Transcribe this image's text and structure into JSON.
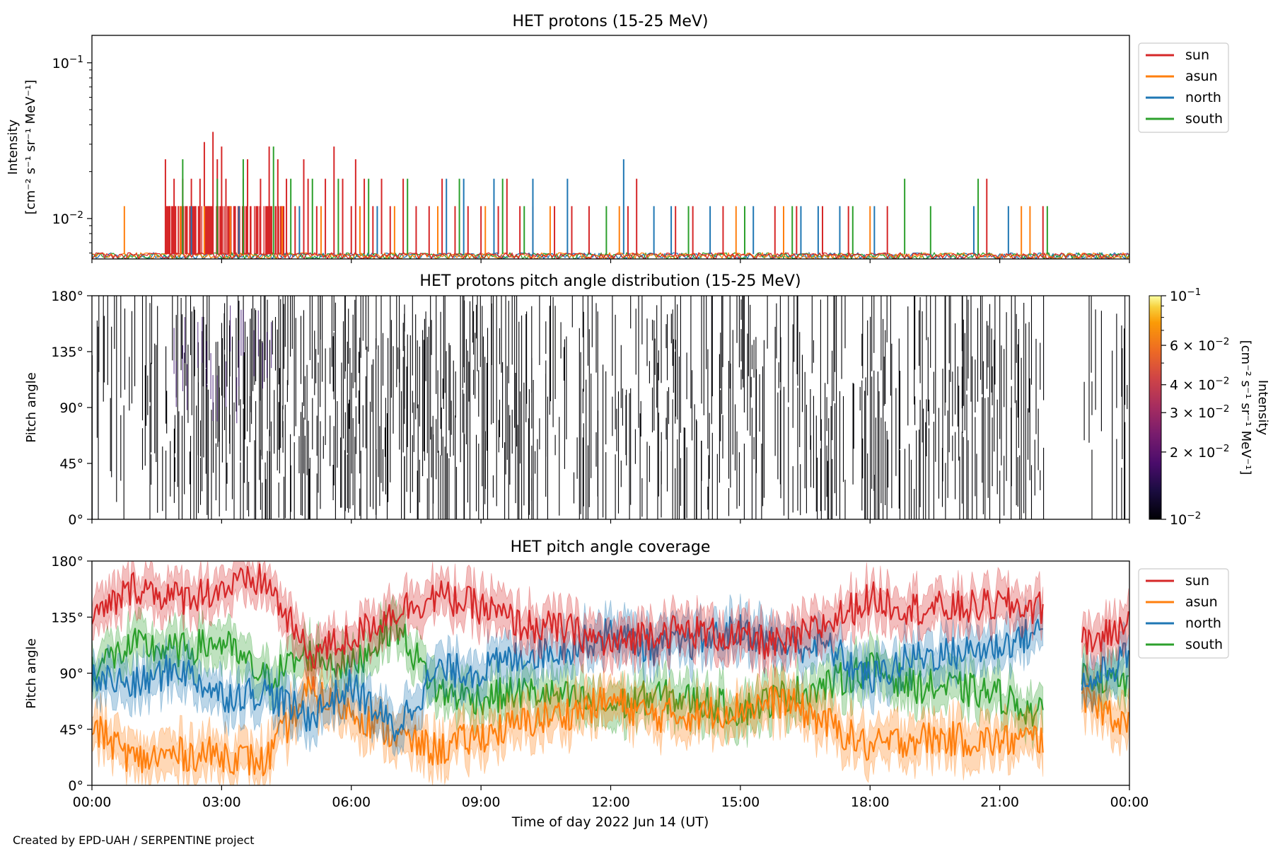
{
  "footer": "Created by EPD-UAH / SERPENTINE project",
  "colors": {
    "sun": "#d62728",
    "asun": "#ff7f0e",
    "north": "#1f77b4",
    "south": "#2ca02c"
  },
  "chart_data": [
    {
      "type": "line",
      "title": "HET protons (15-25 MeV)",
      "ylabel": [
        "Intensity",
        "[cm⁻² s⁻¹ sr⁻¹ MeV⁻¹]"
      ],
      "yscale": "log",
      "ylim": [
        0.0055,
        0.15
      ],
      "yticks": [
        {
          "value": 0.01,
          "base": "10",
          "exp": "−2"
        },
        {
          "value": 0.1,
          "base": "10",
          "exp": "−1"
        }
      ],
      "xlim_hours": [
        0,
        24
      ],
      "legend": {
        "placement": "outside right",
        "entries": [
          "sun",
          "asun",
          "north",
          "south"
        ]
      },
      "baseline_intensity": 0.0059,
      "series": [
        {
          "name": "sun",
          "color": "#d62728",
          "spikes": [
            [
              1.7,
              0.024
            ],
            [
              1.8,
              0.012
            ],
            [
              1.9,
              0.018
            ],
            [
              2.0,
              0.012
            ],
            [
              2.1,
              0.018
            ],
            [
              2.2,
              0.012
            ],
            [
              2.3,
              0.018
            ],
            [
              2.4,
              0.012
            ],
            [
              2.5,
              0.018
            ],
            [
              2.6,
              0.031
            ],
            [
              2.7,
              0.012
            ],
            [
              2.8,
              0.036
            ],
            [
              2.9,
              0.024
            ],
            [
              3.0,
              0.029
            ],
            [
              3.1,
              0.018
            ],
            [
              3.3,
              0.012
            ],
            [
              3.5,
              0.018
            ],
            [
              3.6,
              0.024
            ],
            [
              3.8,
              0.012
            ],
            [
              3.9,
              0.018
            ],
            [
              4.1,
              0.029
            ],
            [
              4.3,
              0.024
            ],
            [
              4.5,
              0.018
            ],
            [
              4.7,
              0.012
            ],
            [
              4.9,
              0.024
            ],
            [
              5.0,
              0.018
            ],
            [
              5.2,
              0.012
            ],
            [
              5.4,
              0.018
            ],
            [
              5.6,
              0.029
            ],
            [
              5.8,
              0.018
            ],
            [
              6.0,
              0.012
            ],
            [
              6.1,
              0.024
            ],
            [
              6.3,
              0.018
            ],
            [
              6.5,
              0.012
            ],
            [
              6.7,
              0.018
            ],
            [
              6.9,
              0.012
            ],
            [
              7.2,
              0.018
            ],
            [
              7.5,
              0.012
            ],
            [
              7.8,
              0.012
            ],
            [
              8.1,
              0.018
            ],
            [
              8.4,
              0.012
            ],
            [
              8.7,
              0.012
            ],
            [
              9.0,
              0.012
            ],
            [
              9.4,
              0.012
            ],
            [
              9.6,
              0.018
            ],
            [
              9.9,
              0.012
            ],
            [
              10.2,
              0.012
            ],
            [
              10.7,
              0.012
            ],
            [
              11.1,
              0.012
            ],
            [
              11.5,
              0.012
            ],
            [
              12.4,
              0.012
            ],
            [
              12.6,
              0.018
            ],
            [
              13.5,
              0.012
            ],
            [
              13.9,
              0.012
            ],
            [
              14.6,
              0.012
            ],
            [
              15.8,
              0.012
            ],
            [
              16.3,
              0.012
            ],
            [
              16.9,
              0.012
            ],
            [
              17.5,
              0.012
            ],
            [
              18.4,
              0.012
            ],
            [
              20.7,
              0.018
            ],
            [
              22.0,
              0.012
            ]
          ]
        },
        {
          "name": "asun",
          "color": "#ff7f0e",
          "spikes": [
            [
              0.75,
              0.012
            ],
            [
              2.05,
              0.012
            ],
            [
              2.6,
              0.012
            ],
            [
              3.2,
              0.012
            ],
            [
              4.4,
              0.012
            ],
            [
              5.3,
              0.012
            ],
            [
              6.2,
              0.012
            ],
            [
              7.0,
              0.012
            ],
            [
              8.0,
              0.012
            ],
            [
              9.1,
              0.012
            ],
            [
              10.6,
              0.012
            ],
            [
              12.2,
              0.012
            ],
            [
              14.9,
              0.012
            ],
            [
              16.0,
              0.012
            ],
            [
              18.0,
              0.012
            ],
            [
              21.5,
              0.012
            ],
            [
              21.7,
              0.012
            ]
          ]
        },
        {
          "name": "north",
          "color": "#1f77b4",
          "spikes": [
            [
              2.3,
              0.012
            ],
            [
              3.4,
              0.012
            ],
            [
              4.8,
              0.012
            ],
            [
              6.6,
              0.012
            ],
            [
              8.2,
              0.018
            ],
            [
              8.6,
              0.018
            ],
            [
              9.3,
              0.018
            ],
            [
              10.2,
              0.018
            ],
            [
              11.0,
              0.018
            ],
            [
              12.3,
              0.024
            ],
            [
              13.0,
              0.012
            ],
            [
              13.4,
              0.012
            ],
            [
              14.3,
              0.012
            ],
            [
              15.3,
              0.012
            ],
            [
              16.4,
              0.012
            ],
            [
              16.8,
              0.012
            ],
            [
              17.3,
              0.012
            ],
            [
              18.1,
              0.012
            ],
            [
              20.4,
              0.012
            ],
            [
              21.2,
              0.012
            ]
          ]
        },
        {
          "name": "south",
          "color": "#2ca02c",
          "spikes": [
            [
              2.1,
              0.024
            ],
            [
              2.9,
              0.018
            ],
            [
              3.5,
              0.024
            ],
            [
              4.2,
              0.029
            ],
            [
              4.6,
              0.018
            ],
            [
              5.1,
              0.018
            ],
            [
              5.7,
              0.018
            ],
            [
              6.4,
              0.018
            ],
            [
              7.3,
              0.018
            ],
            [
              8.5,
              0.018
            ],
            [
              9.5,
              0.018
            ],
            [
              10.0,
              0.012
            ],
            [
              11.9,
              0.012
            ],
            [
              13.8,
              0.012
            ],
            [
              15.1,
              0.012
            ],
            [
              16.2,
              0.012
            ],
            [
              17.6,
              0.012
            ],
            [
              18.8,
              0.018
            ],
            [
              19.4,
              0.012
            ],
            [
              20.5,
              0.018
            ],
            [
              22.1,
              0.012
            ]
          ]
        }
      ]
    },
    {
      "type": "heatmap",
      "title": "HET protons pitch angle distribution (15-25 MeV)",
      "ylabel": "Pitch angle",
      "ylim": [
        0,
        180
      ],
      "yticks": [
        "0°",
        "45°",
        "90°",
        "135°",
        "180°"
      ],
      "xlim_hours": [
        0,
        24
      ],
      "colorbar": {
        "label": [
          "Intensity",
          "[cm⁻² s⁻¹ sr⁻¹ MeV⁻¹]"
        ],
        "scale": "log",
        "range": [
          0.01,
          0.1
        ],
        "colormap": "inferno",
        "ticks": [
          {
            "value": 0.1,
            "base": "10",
            "exp": "−1"
          },
          {
            "value": 0.06,
            "base": "6 × 10",
            "exp": "−2"
          },
          {
            "value": 0.04,
            "base": "4 × 10",
            "exp": "−2"
          },
          {
            "value": 0.03,
            "base": "3 × 10",
            "exp": "−2"
          },
          {
            "value": 0.02,
            "base": "2 × 10",
            "exp": "−2"
          },
          {
            "value": 0.01,
            "base": "10",
            "exp": "−2"
          }
        ]
      },
      "data_gaps_hours": [
        [
          22.0,
          22.9
        ]
      ]
    },
    {
      "type": "line",
      "title": "HET pitch angle coverage",
      "ylabel": "Pitch angle",
      "xlabel": "Time of day 2022 Jun 14 (UT)",
      "ylim": [
        0,
        180
      ],
      "yticks": [
        "0°",
        "45°",
        "90°",
        "135°",
        "180°"
      ],
      "xticks": [
        "00:00",
        "03:00",
        "06:00",
        "09:00",
        "12:00",
        "15:00",
        "18:00",
        "21:00",
        "00:00"
      ],
      "xlim_hours": [
        0,
        24
      ],
      "legend": {
        "placement": "outside right",
        "entries": [
          "sun",
          "asun",
          "north",
          "south"
        ]
      },
      "band_halfwidth_deg": 15,
      "data_gaps_hours": [
        [
          22.0,
          22.9
        ]
      ],
      "x_hours": [
        0,
        1,
        2,
        3,
        4,
        5,
        6,
        7,
        8,
        9,
        10,
        11,
        12,
        13,
        14,
        15,
        16,
        17,
        18,
        19,
        20,
        21,
        22,
        23,
        24
      ],
      "series": [
        {
          "name": "sun",
          "color": "#d62728",
          "values": [
            132,
            160,
            150,
            158,
            165,
            105,
            118,
            140,
            152,
            143,
            128,
            125,
            112,
            124,
            123,
            118,
            112,
            130,
            150,
            142,
            142,
            145,
            142,
            112,
            130
          ]
        },
        {
          "name": "asun",
          "color": "#ff7f0e",
          "values": [
            47,
            20,
            25,
            25,
            18,
            75,
            60,
            40,
            28,
            40,
            50,
            58,
            68,
            56,
            57,
            62,
            68,
            50,
            30,
            38,
            37,
            35,
            38,
            68,
            50
          ]
        },
        {
          "name": "north",
          "color": "#1f77b4",
          "values": [
            88,
            80,
            95,
            72,
            75,
            55,
            80,
            45,
            92,
            92,
            105,
            110,
            122,
            110,
            115,
            124,
            112,
            112,
            85,
            103,
            106,
            112,
            125,
            80,
            105
          ]
        },
        {
          "name": "south",
          "color": "#2ca02c",
          "values": [
            95,
            112,
            108,
            115,
            85,
            105,
            95,
            130,
            75,
            70,
            75,
            70,
            63,
            72,
            68,
            60,
            72,
            80,
            95,
            80,
            78,
            72,
            55,
            90,
            80
          ]
        }
      ]
    }
  ]
}
